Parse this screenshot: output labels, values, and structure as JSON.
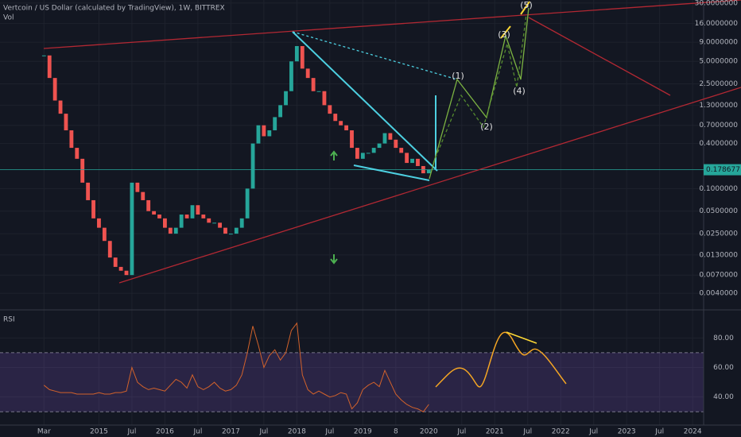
{
  "chart_data": [
    {
      "type": "candlestick",
      "title": "Vertcoin / US Dollar (calculated by TradingView), 1W, BITTREX",
      "volume_label": "Vol",
      "x": [
        "2014-03",
        "2014-04",
        "2014-05",
        "2014-06",
        "2014-07",
        "2014-08",
        "2014-09",
        "2014-10",
        "2014-11",
        "2014-12",
        "2015-01",
        "2015-02",
        "2015-03",
        "2015-04",
        "2015-05",
        "2015-06",
        "2015-07",
        "2015-08",
        "2015-09",
        "2015-10",
        "2015-11",
        "2015-12",
        "2016-01",
        "2016-02",
        "2016-03",
        "2016-04",
        "2016-05",
        "2016-06",
        "2016-07",
        "2016-08",
        "2016-09",
        "2016-10",
        "2016-11",
        "2016-12",
        "2017-01",
        "2017-02",
        "2017-03",
        "2017-04",
        "2017-05",
        "2017-06",
        "2017-07",
        "2017-08",
        "2017-09",
        "2017-10",
        "2017-11",
        "2017-12",
        "2018-01",
        "2018-02",
        "2018-03",
        "2018-04",
        "2018-05",
        "2018-06",
        "2018-07",
        "2018-08",
        "2018-09",
        "2018-10",
        "2018-11",
        "2018-12",
        "2019-01",
        "2019-02",
        "2019-03",
        "2019-04",
        "2019-05",
        "2019-06",
        "2019-07",
        "2019-08",
        "2019-09",
        "2019-10",
        "2019-11",
        "2019-12",
        "2020-01"
      ],
      "values": [
        6,
        3,
        1.5,
        1.0,
        0.6,
        0.35,
        0.25,
        0.12,
        0.07,
        0.04,
        0.03,
        0.02,
        0.012,
        0.009,
        0.008,
        0.007,
        0.12,
        0.09,
        0.07,
        0.05,
        0.045,
        0.04,
        0.03,
        0.025,
        0.03,
        0.045,
        0.04,
        0.06,
        0.045,
        0.04,
        0.035,
        0.035,
        0.03,
        0.025,
        0.025,
        0.03,
        0.04,
        0.1,
        0.4,
        0.7,
        0.5,
        0.6,
        0.9,
        1.3,
        2.0,
        5.0,
        8.0,
        4.0,
        3.0,
        2.0,
        2.0,
        1.3,
        1.0,
        0.8,
        0.7,
        0.6,
        0.35,
        0.25,
        0.3,
        0.3,
        0.35,
        0.4,
        0.55,
        0.45,
        0.35,
        0.3,
        0.22,
        0.25,
        0.2,
        0.16,
        0.18
      ],
      "up_color": "#26a69a",
      "down_color": "#ef5350",
      "log_scale": true,
      "grid": true,
      "ylim": [
        0.0024,
        33
      ],
      "yticks": [
        {
          "value": 30,
          "label": "30.0000000"
        },
        {
          "value": 16,
          "label": "16.0000000"
        },
        {
          "value": 9,
          "label": "9.0000000"
        },
        {
          "value": 5,
          "label": "5.0000000"
        },
        {
          "value": 2.5,
          "label": "2.5000000"
        },
        {
          "value": 1.3,
          "label": "1.3000000"
        },
        {
          "value": 0.7,
          "label": "0.7000000"
        },
        {
          "value": 0.4,
          "label": "0.4000000"
        },
        {
          "value": 0.1,
          "label": "0.1000000"
        },
        {
          "value": 0.05,
          "label": "0.0500000"
        },
        {
          "value": 0.025,
          "label": "0.0250000"
        },
        {
          "value": 0.013,
          "label": "0.0130000"
        },
        {
          "value": 0.007,
          "label": "0.0070000"
        },
        {
          "value": 0.004,
          "label": "0.0040000"
        }
      ],
      "last_price": 0.1786771,
      "xlim": [
        "2013-07",
        "2024-03"
      ],
      "xticks": [
        {
          "value": "2014-03",
          "label": "Mar"
        },
        {
          "value": "2015-01",
          "label": "2015"
        },
        {
          "value": "2015-07",
          "label": "Jul"
        },
        {
          "value": "2016-01",
          "label": "2016"
        },
        {
          "value": "2016-07",
          "label": "Jul"
        },
        {
          "value": "2017-01",
          "label": "2017"
        },
        {
          "value": "2017-07",
          "label": "Jul"
        },
        {
          "value": "2018-01",
          "label": "2018"
        },
        {
          "value": "2018-07",
          "label": "Jul"
        },
        {
          "value": "2019-01",
          "label": "2019"
        },
        {
          "value": "2019-07",
          "label": "8"
        },
        {
          "value": "2020-01",
          "label": "2020"
        },
        {
          "value": "2020-07",
          "label": "Jul"
        },
        {
          "value": "2021-01",
          "label": "2021"
        },
        {
          "value": "2021-07",
          "label": "Jul"
        },
        {
          "value": "2022-01",
          "label": "2022"
        },
        {
          "value": "2022-07",
          "label": "Jul"
        },
        {
          "value": "2023-01",
          "label": "2023"
        },
        {
          "value": "2023-07",
          "label": "Jul"
        },
        {
          "value": "2024-01",
          "label": "2024"
        }
      ],
      "annotations": [
        "(1)",
        "(2)",
        "(3)",
        "(4)",
        "(5)"
      ]
    },
    {
      "type": "line",
      "title": "RSI",
      "color": "#d2622b",
      "x": [
        "2014-03",
        "2014-04",
        "2014-05",
        "2014-06",
        "2014-07",
        "2014-08",
        "2014-09",
        "2014-10",
        "2014-11",
        "2014-12",
        "2015-01",
        "2015-02",
        "2015-03",
        "2015-04",
        "2015-05",
        "2015-06",
        "2015-07",
        "2015-08",
        "2015-09",
        "2015-10",
        "2015-11",
        "2015-12",
        "2016-01",
        "2016-02",
        "2016-03",
        "2016-04",
        "2016-05",
        "2016-06",
        "2016-07",
        "2016-08",
        "2016-09",
        "2016-10",
        "2016-11",
        "2016-12",
        "2017-01",
        "2017-02",
        "2017-03",
        "2017-04",
        "2017-05",
        "2017-06",
        "2017-07",
        "2017-08",
        "2017-09",
        "2017-10",
        "2017-11",
        "2017-12",
        "2018-01",
        "2018-02",
        "2018-03",
        "2018-04",
        "2018-05",
        "2018-06",
        "2018-07",
        "2018-08",
        "2018-09",
        "2018-10",
        "2018-11",
        "2018-12",
        "2019-01",
        "2019-02",
        "2019-03",
        "2019-04",
        "2019-05",
        "2019-06",
        "2019-07",
        "2019-08",
        "2019-09",
        "2019-10",
        "2019-11",
        "2019-12",
        "2020-01"
      ],
      "values": [
        48,
        45,
        44,
        43,
        43,
        43,
        42,
        42,
        42,
        42,
        43,
        42,
        42,
        43,
        43,
        44,
        60,
        50,
        47,
        45,
        46,
        45,
        44,
        48,
        52,
        50,
        46,
        55,
        47,
        45,
        47,
        50,
        46,
        44,
        45,
        48,
        55,
        70,
        88,
        75,
        60,
        68,
        72,
        65,
        70,
        85,
        90,
        55,
        45,
        42,
        44,
        42,
        40,
        41,
        43,
        42,
        32,
        36,
        45,
        48,
        50,
        47,
        58,
        50,
        42,
        38,
        35,
        33,
        32,
        30,
        35
      ],
      "ylim": [
        21,
        99
      ],
      "yticks": [
        {
          "value": 80,
          "label": "80.00"
        },
        {
          "value": 60,
          "label": "60.00"
        },
        {
          "value": 40,
          "label": "40.00"
        }
      ],
      "bands": [
        30,
        70
      ]
    }
  ]
}
